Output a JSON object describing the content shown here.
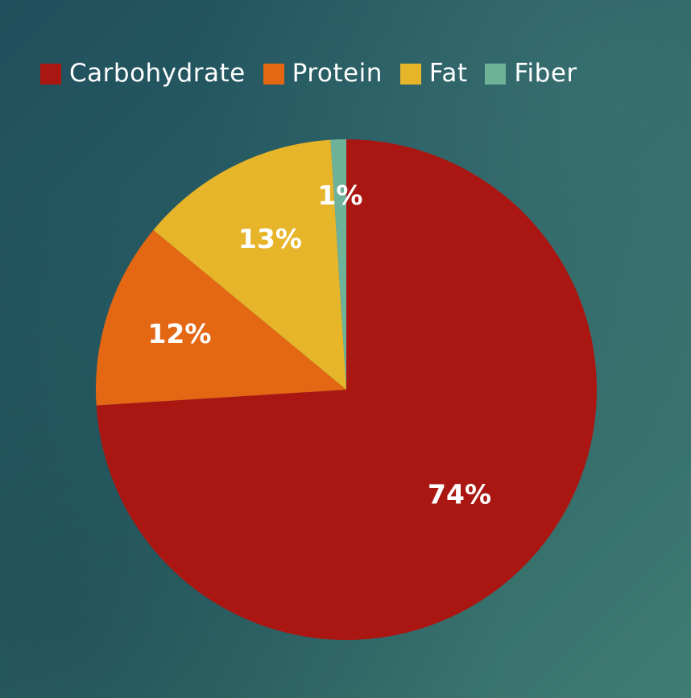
{
  "chart_data": {
    "type": "pie",
    "categories": [
      "Carbohydrate",
      "Protein",
      "Fat",
      "Fiber"
    ],
    "values": [
      74,
      12,
      13,
      1
    ],
    "labels": [
      "74%",
      "12%",
      "13%",
      "1%"
    ],
    "colors": [
      "#aa1712",
      "#e46713",
      "#e6b52a",
      "#6fb29a"
    ],
    "legend_position": "top"
  }
}
